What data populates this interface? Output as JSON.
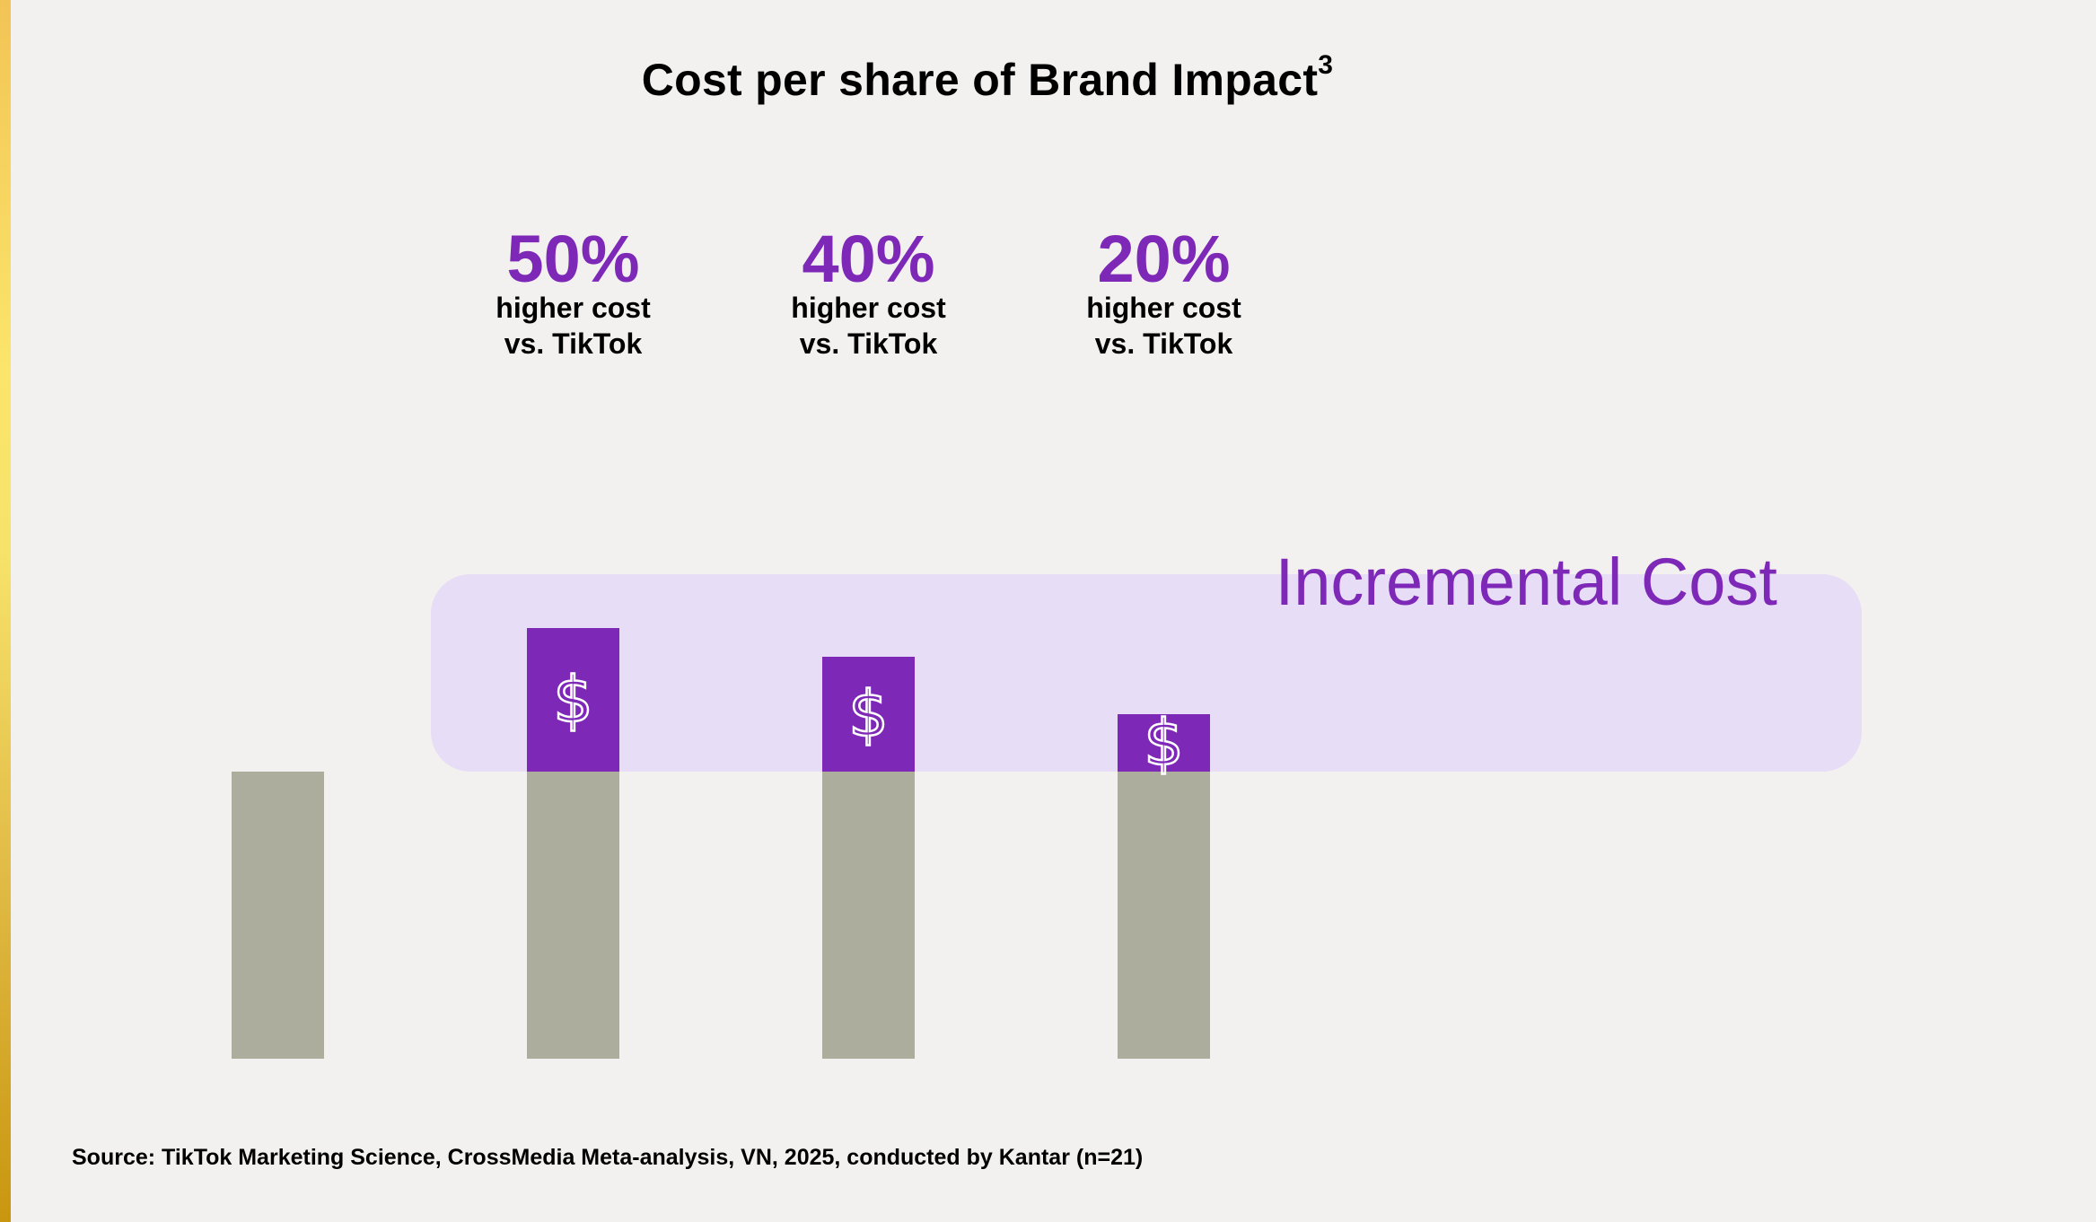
{
  "title": "Cost per share of Brand Impact",
  "title_superscript": "3",
  "source": "Source: TikTok Marketing Science, CrossMedia Meta-analysis, VN, 2025, conducted by Kantar (n=21)",
  "colors": {
    "base_bar": "#adad9d",
    "incremental_bar": "#7e28b8",
    "incremental_region": "#e7ddf6",
    "accent_text": "#7e28b8"
  },
  "chart_data": {
    "type": "bar",
    "stacked": true,
    "categories": [
      "",
      "",
      "",
      ""
    ],
    "series": [
      {
        "values": [
          1.0,
          1.0,
          1.0,
          1.0
        ]
      },
      {
        "values": [
          0,
          0.5,
          0.4,
          0.2
        ]
      }
    ],
    "annotations": [
      {
        "category_index": 1,
        "value": "50%",
        "text_line1": "higher cost",
        "text_line2": "vs. TikTok"
      },
      {
        "category_index": 2,
        "value": "40%",
        "text_line1": "higher cost",
        "text_line2": "vs. TikTok"
      },
      {
        "category_index": 3,
        "value": "20%",
        "text_line1": "higher cost",
        "text_line2": "vs. TikTok"
      }
    ],
    "bar_symbol": "$",
    "region_label": "Incremental Cost"
  }
}
